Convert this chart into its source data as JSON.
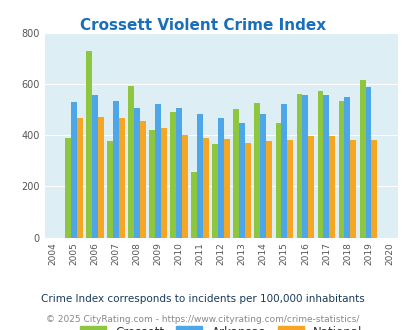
{
  "title": "Crossett Violent Crime Index",
  "years": [
    2004,
    2005,
    2006,
    2007,
    2008,
    2009,
    2010,
    2011,
    2012,
    2013,
    2014,
    2015,
    2016,
    2017,
    2018,
    2019,
    2020
  ],
  "crossett": [
    null,
    390,
    730,
    378,
    592,
    422,
    493,
    255,
    365,
    503,
    528,
    447,
    562,
    573,
    535,
    617,
    null
  ],
  "arkansas": [
    null,
    532,
    557,
    533,
    507,
    523,
    507,
    482,
    468,
    450,
    482,
    522,
    557,
    558,
    548,
    590,
    null
  ],
  "national": [
    null,
    467,
    473,
    467,
    457,
    430,
    402,
    390,
    387,
    368,
    376,
    383,
    398,
    397,
    383,
    380,
    null
  ],
  "crossett_color": "#8dc63f",
  "arkansas_color": "#4da6e8",
  "national_color": "#f5a623",
  "bg_color": "#ddeef5",
  "ylim": [
    0,
    800
  ],
  "yticks": [
    0,
    200,
    400,
    600,
    800
  ],
  "footnote1": "Crime Index corresponds to incidents per 100,000 inhabitants",
  "footnote2": "© 2025 CityRating.com - https://www.cityrating.com/crime-statistics/",
  "title_color": "#1a6fba",
  "footnote1_color": "#1a3a5c",
  "footnote2_color": "#888888",
  "url_color": "#4a90d9",
  "legend_label_color": "#333333"
}
